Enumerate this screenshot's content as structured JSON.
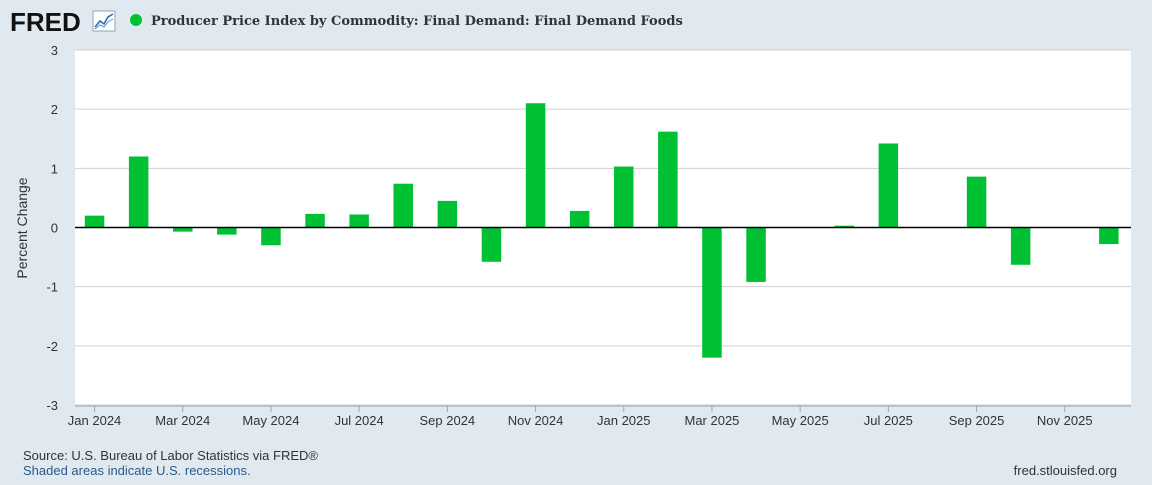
{
  "header": {
    "logo_text": "FRED",
    "series_title": "Producer Price Index by Commodity: Final Demand: Final Demand Foods"
  },
  "colors": {
    "background": "#e1e9f0",
    "plot_background": "#ffffff",
    "bar": "#00c033",
    "grid": "#d0d0d0",
    "zero_line": "#000000",
    "text": "#333333",
    "link": "#2a5a8a"
  },
  "chart_data": {
    "type": "bar",
    "title": "Producer Price Index by Commodity: Final Demand: Final Demand Foods",
    "xlabel": "",
    "ylabel": "Percent Change",
    "ylim": [
      -3,
      3
    ],
    "yticks": [
      -3,
      -2,
      -1,
      0,
      1,
      2,
      3
    ],
    "ytick_labels": [
      "-3",
      "-2",
      "-1",
      "0",
      "1",
      "2",
      "3"
    ],
    "grid": true,
    "categories": [
      "Jan 2024",
      "Feb 2024",
      "Mar 2024",
      "Apr 2024",
      "May 2024",
      "Jun 2024",
      "Jul 2024",
      "Aug 2024",
      "Sep 2024",
      "Oct 2024",
      "Nov 2024",
      "Dec 2024",
      "Jan 2025",
      "Feb 2025",
      "Mar 2025",
      "Apr 2025",
      "May 2025",
      "Jun 2025",
      "Jul 2025",
      "Aug 2025",
      "Sep 2025",
      "Oct 2025",
      "Nov 2025",
      "Dec 2025"
    ],
    "values": [
      0.2,
      1.2,
      -0.07,
      -0.12,
      -0.3,
      0.23,
      0.22,
      0.74,
      0.45,
      -0.58,
      2.1,
      0.28,
      1.03,
      1.62,
      -2.2,
      -0.92,
      0.0,
      0.03,
      1.42,
      0.0,
      0.86,
      -0.63,
      0.0,
      -0.28
    ],
    "x_tick_labels": [
      "Jan 2024",
      "Mar 2024",
      "May 2024",
      "Jul 2024",
      "Sep 2024",
      "Nov 2024",
      "Jan 2025",
      "Mar 2025",
      "May 2025",
      "Jul 2025",
      "Sep 2025",
      "Nov 2025"
    ],
    "legend": {
      "position": "top-left",
      "entries": [
        "Producer Price Index by Commodity: Final Demand: Final Demand Foods"
      ]
    }
  },
  "footer": {
    "source": "Source: U.S. Bureau of Labor Statistics via FRED®",
    "recession_note": "Shaded areas indicate U.S. recessions.",
    "site": "fred.stlouisfed.org"
  }
}
